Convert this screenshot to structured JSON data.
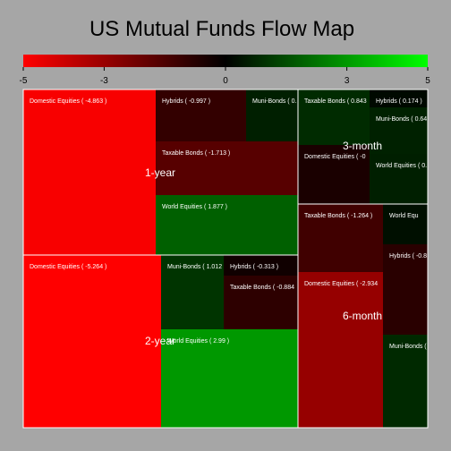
{
  "chart_data": {
    "type": "treemap",
    "title": "US Mutual Funds Flow Map",
    "color_scale": {
      "min": -5,
      "max": 5,
      "ticks": [
        "-5",
        "-3",
        "0",
        "3",
        "5"
      ],
      "colors": {
        "negative": "#ff0000",
        "zero": "#000000",
        "positive": "#00ff00"
      }
    },
    "groups": [
      {
        "name": "1-year",
        "cells": [
          {
            "category": "Domestic Equities",
            "value": -4.863,
            "label": "Domestic Equities ( -4.863 )"
          },
          {
            "category": "Hybrids",
            "value": -0.997,
            "label": "Hybrids ( -0.997 )"
          },
          {
            "category": "Muni-Bonds",
            "value": 0.6,
            "label": "Muni-Bonds ( 0."
          },
          {
            "category": "Taxable Bonds",
            "value": -1.713,
            "label": "Taxable Bonds ( -1.713 )"
          },
          {
            "category": "World Equities",
            "value": 1.877,
            "label": "World Equities ( 1.877 )"
          }
        ]
      },
      {
        "name": "2-year",
        "cells": [
          {
            "category": "Domestic Equities",
            "value": -5.264,
            "label": "Domestic Equities ( -5.264 )"
          },
          {
            "category": "Muni-Bonds",
            "value": 1.012,
            "label": "Muni-Bonds ( 1.012"
          },
          {
            "category": "Hybrids",
            "value": -0.313,
            "label": "Hybrids ( -0.313 )"
          },
          {
            "category": "Taxable Bonds",
            "value": -0.884,
            "label": "Taxable Bonds ( -0.884"
          },
          {
            "category": "World Equities",
            "value": 2.99,
            "label": "World Equities ( 2.99 )"
          }
        ]
      },
      {
        "name": "3-month",
        "cells": [
          {
            "category": "Taxable Bonds",
            "value": 0.843,
            "label": "Taxable Bonds ( 0.843"
          },
          {
            "category": "Hybrids",
            "value": 0.174,
            "label": "Hybrids ( 0.174 )"
          },
          {
            "category": "Muni-Bonds",
            "value": 0.64,
            "label": "Muni-Bonds ( 0.64"
          },
          {
            "category": "Domestic Equities",
            "value": -0.5,
            "label": "Domestic Equities ( -0"
          },
          {
            "category": "World Equities",
            "value": 0.6,
            "label": "World Equities ( 0."
          }
        ]
      },
      {
        "name": "6-month",
        "cells": [
          {
            "category": "Taxable Bonds",
            "value": -1.264,
            "label": "Taxable Bonds ( -1.264 )"
          },
          {
            "category": "World Equities",
            "value": 0.3,
            "label": "World Equ"
          },
          {
            "category": "Hybrids",
            "value": -0.8,
            "label": "Hybrids ( -0.8"
          },
          {
            "category": "Domestic Equities",
            "value": -2.934,
            "label": "Domestic Equities ( -2.934"
          },
          {
            "category": "Muni-Bonds",
            "value": 0.8,
            "label": "Muni-Bonds ("
          }
        ]
      }
    ]
  }
}
